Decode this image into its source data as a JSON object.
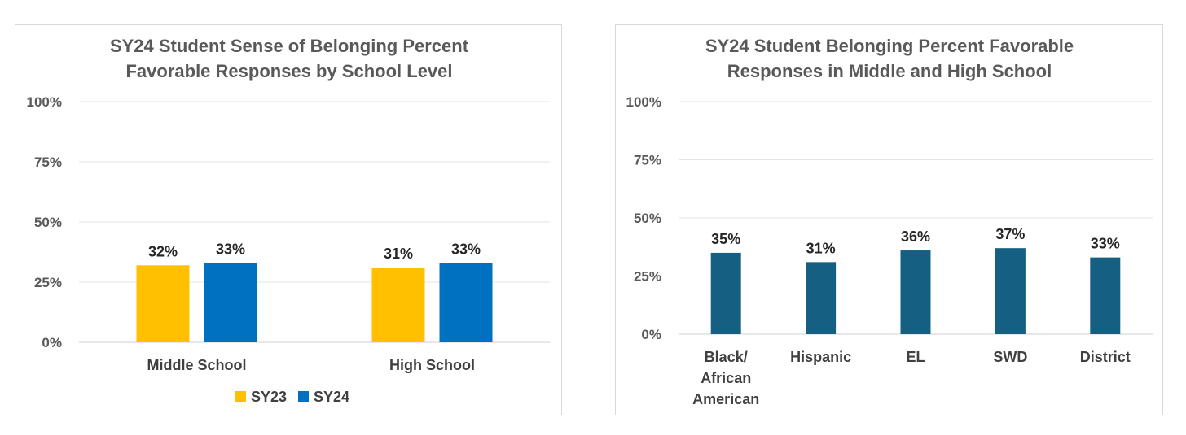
{
  "chart_data": [
    {
      "type": "bar",
      "title_lines": [
        "SY24 Student Sense of Belonging Percent",
        "Favorable Responses by School Level"
      ],
      "categories": [
        "Middle School",
        "High School"
      ],
      "series": [
        {
          "name": "SY23",
          "values": [
            32,
            31
          ],
          "labels": [
            "32%",
            "31%"
          ]
        },
        {
          "name": "SY24",
          "values": [
            33,
            33
          ],
          "labels": [
            "33%",
            "33%"
          ]
        }
      ],
      "ylim": [
        0,
        100
      ],
      "yticks": [
        0,
        25,
        50,
        75,
        100
      ],
      "ytick_labels": [
        "0%",
        "25%",
        "50%",
        "75%",
        "100%"
      ],
      "grid": true,
      "legend": "bottom",
      "colors": [
        "#FFC000",
        "#0070C0"
      ]
    },
    {
      "type": "bar",
      "title_lines": [
        "SY24 Student Belonging Percent Favorable",
        "Responses in Middle and High School"
      ],
      "categories": [
        [
          "Black/",
          "African",
          "American"
        ],
        [
          "Hispanic"
        ],
        [
          "EL"
        ],
        [
          "SWD"
        ],
        [
          "District"
        ]
      ],
      "series": [
        {
          "values": [
            35,
            31,
            36,
            37,
            33
          ],
          "labels": [
            "35%",
            "31%",
            "36%",
            "37%",
            "33%"
          ]
        }
      ],
      "ylim": [
        0,
        100
      ],
      "yticks": [
        0,
        25,
        50,
        75,
        100
      ],
      "ytick_labels": [
        "0%",
        "25%",
        "50%",
        "75%",
        "100%"
      ],
      "grid": true,
      "legend": "none",
      "colors": [
        "#156082"
      ]
    }
  ]
}
